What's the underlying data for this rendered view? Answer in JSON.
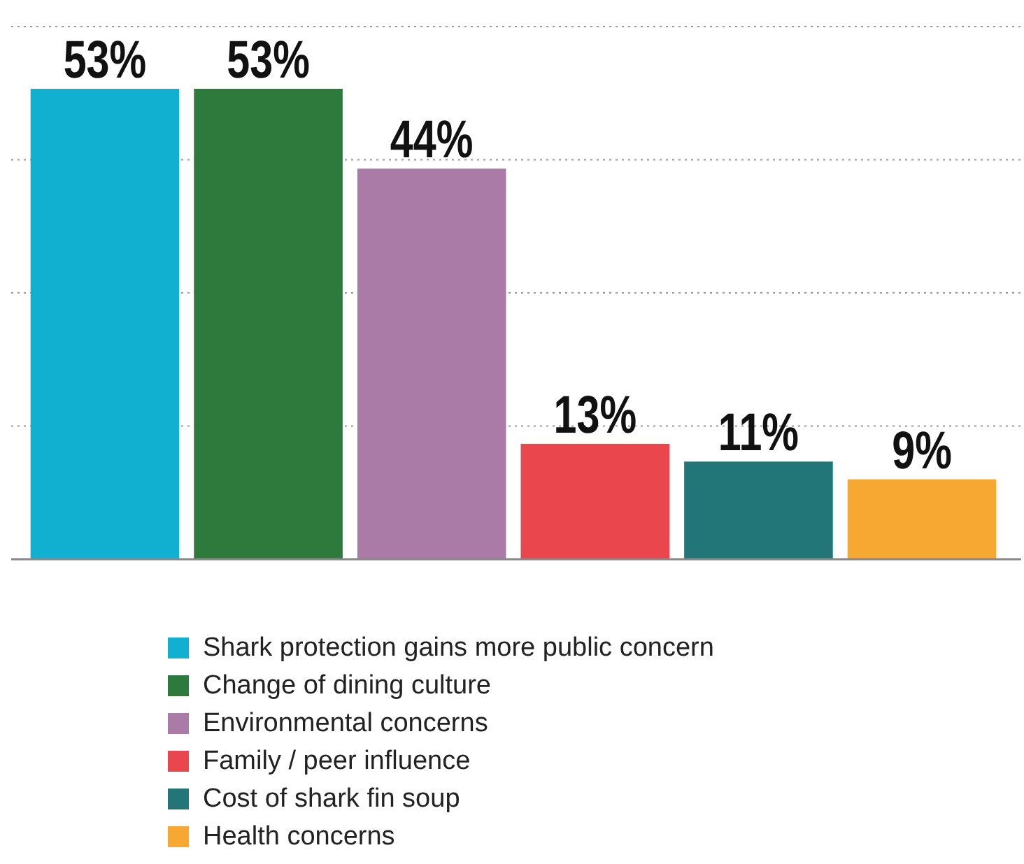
{
  "chart_data": {
    "type": "bar",
    "categories": [
      null,
      null,
      null,
      null,
      null,
      null
    ],
    "series": [
      {
        "name": "Shark protection gains more public concern",
        "color": "#12b0d0",
        "values": [
          53,
          null,
          null,
          null,
          null,
          null
        ],
        "value_labels": [
          "53%",
          null,
          null,
          null,
          null,
          null
        ]
      },
      {
        "name": "Change of dining culture",
        "color": "#2e7a3c",
        "values": [
          null,
          53,
          null,
          null,
          null,
          null
        ],
        "value_labels": [
          null,
          "53%",
          null,
          null,
          null,
          null
        ]
      },
      {
        "name": "Environmental concerns",
        "color": "#ab7ba7",
        "values": [
          null,
          null,
          44,
          null,
          null,
          null
        ],
        "value_labels": [
          null,
          null,
          "44%",
          null,
          null,
          null
        ]
      },
      {
        "name": "Family / peer influence",
        "color": "#e9474d",
        "values": [
          null,
          null,
          null,
          13,
          null,
          null
        ],
        "value_labels": [
          null,
          null,
          null,
          "13%",
          null,
          null
        ]
      },
      {
        "name": "Cost of shark fin soup",
        "color": "#237677",
        "values": [
          null,
          null,
          null,
          null,
          11,
          null
        ],
        "value_labels": [
          null,
          null,
          null,
          null,
          "11%",
          null
        ]
      },
      {
        "name": "Health concerns",
        "color": "#f7a833",
        "values": [
          null,
          null,
          null,
          null,
          null,
          9
        ],
        "value_labels": [
          null,
          null,
          null,
          null,
          null,
          "9%"
        ]
      }
    ],
    "ylim": [
      0,
      63
    ],
    "yticks": [
      {
        "value": 15,
        "label": null
      },
      {
        "value": 30,
        "label": null
      },
      {
        "value": 45,
        "label": null
      },
      {
        "value": 60,
        "label": null
      }
    ],
    "stacked": true,
    "grid": "y",
    "legend": "bottom"
  }
}
